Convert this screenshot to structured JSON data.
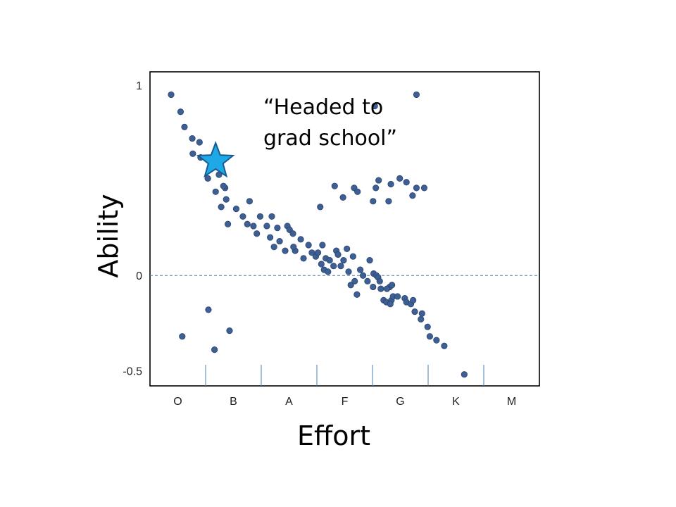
{
  "chart_data": {
    "type": "scatter",
    "title": "",
    "xlabel": "Effort",
    "ylabel": "Ability",
    "x_categories": [
      "O",
      "B",
      "A",
      "F",
      "G",
      "K",
      "M"
    ],
    "xlim": [
      0,
      7
    ],
    "ylim": [
      -0.58,
      1.07
    ],
    "yticks": [
      {
        "value": 1,
        "label": "1"
      },
      {
        "value": 0,
        "label": "0"
      },
      {
        "value": -0.5,
        "label": "-0.5"
      }
    ],
    "zero_line": true,
    "grid": false,
    "legend": "none",
    "annotation": {
      "line1": "“Headed to",
      "line2": "grad school”",
      "x": 1.18,
      "y": 0.6
    },
    "colors": {
      "point": "#3d5f94",
      "point_edge": "#2a4570",
      "star_fill": "#1fa8e6",
      "star_edge": "#1a5a93",
      "zero_line": "#4a7fb0"
    },
    "series": [
      {
        "marker": "circle",
        "points": [
          [
            0.38,
            0.95
          ],
          [
            0.55,
            0.86
          ],
          [
            0.62,
            0.78
          ],
          [
            0.76,
            0.72
          ],
          [
            0.89,
            0.7
          ],
          [
            0.77,
            0.64
          ],
          [
            0.91,
            0.62
          ],
          [
            1.04,
            0.51
          ],
          [
            1.24,
            0.53
          ],
          [
            1.35,
            0.46
          ],
          [
            1.32,
            0.47
          ],
          [
            1.18,
            0.44
          ],
          [
            1.37,
            0.4
          ],
          [
            1.28,
            0.36
          ],
          [
            1.4,
            0.27
          ],
          [
            1.55,
            0.35
          ],
          [
            1.67,
            0.31
          ],
          [
            1.79,
            0.39
          ],
          [
            1.75,
            0.27
          ],
          [
            1.86,
            0.26
          ],
          [
            1.92,
            0.22
          ],
          [
            1.98,
            0.31
          ],
          [
            2.1,
            0.26
          ],
          [
            2.19,
            0.31
          ],
          [
            2.16,
            0.2
          ],
          [
            2.23,
            0.15
          ],
          [
            2.33,
            0.18
          ],
          [
            2.29,
            0.25
          ],
          [
            2.47,
            0.26
          ],
          [
            2.51,
            0.24
          ],
          [
            2.57,
            0.22
          ],
          [
            2.43,
            0.13
          ],
          [
            2.61,
            0.13
          ],
          [
            2.58,
            0.15
          ],
          [
            2.71,
            0.19
          ],
          [
            2.76,
            0.09
          ],
          [
            2.85,
            0.16
          ],
          [
            2.91,
            0.12
          ],
          [
            2.98,
            0.1
          ],
          [
            3.02,
            0.12
          ],
          [
            3.1,
            0.16
          ],
          [
            3.08,
            0.06
          ],
          [
            3.16,
            0.09
          ],
          [
            3.23,
            0.08
          ],
          [
            3.13,
            0.03
          ],
          [
            3.2,
            0.02
          ],
          [
            3.35,
            0.13
          ],
          [
            3.38,
            0.11
          ],
          [
            3.43,
            0.05
          ],
          [
            3.48,
            0.08
          ],
          [
            3.54,
            0.14
          ],
          [
            3.57,
            0.02
          ],
          [
            3.65,
            0.1
          ],
          [
            3.61,
            -0.05
          ],
          [
            3.68,
            -0.03
          ],
          [
            3.78,
            0.03
          ],
          [
            3.83,
            0.0
          ],
          [
            3.91,
            -0.03
          ],
          [
            3.95,
            0.08
          ],
          [
            4.02,
            0.01
          ],
          [
            4.07,
            0.0
          ],
          [
            4.1,
            -0.01
          ],
          [
            4.13,
            -0.03
          ],
          [
            4.01,
            -0.06
          ],
          [
            4.15,
            -0.07
          ],
          [
            4.2,
            -0.13
          ],
          [
            4.25,
            -0.14
          ],
          [
            4.31,
            -0.06
          ],
          [
            4.35,
            -0.05
          ],
          [
            4.34,
            -0.13
          ],
          [
            4.32,
            -0.15
          ],
          [
            4.37,
            -0.11
          ],
          [
            4.45,
            -0.11
          ],
          [
            4.58,
            -0.12
          ],
          [
            4.61,
            -0.14
          ],
          [
            4.69,
            -0.15
          ],
          [
            4.73,
            -0.13
          ],
          [
            4.76,
            -0.19
          ],
          [
            4.89,
            -0.2
          ],
          [
            4.87,
            -0.23
          ],
          [
            4.99,
            -0.27
          ],
          [
            5.03,
            -0.32
          ],
          [
            5.15,
            -0.34
          ],
          [
            5.29,
            -0.37
          ],
          [
            5.65,
            -0.52
          ],
          [
            4.26,
            -0.07
          ],
          [
            3.72,
            -0.1
          ],
          [
            3.3,
            0.05
          ],
          [
            0.58,
            -0.32
          ],
          [
            1.05,
            -0.18
          ],
          [
            1.16,
            -0.39
          ],
          [
            1.43,
            -0.29
          ],
          [
            3.06,
            0.36
          ],
          [
            3.32,
            0.47
          ],
          [
            3.47,
            0.41
          ],
          [
            3.67,
            0.46
          ],
          [
            3.73,
            0.44
          ],
          [
            4.01,
            0.39
          ],
          [
            4.06,
            0.46
          ],
          [
            4.11,
            0.5
          ],
          [
            4.29,
            0.39
          ],
          [
            4.33,
            0.48
          ],
          [
            4.49,
            0.51
          ],
          [
            4.61,
            0.49
          ],
          [
            4.72,
            0.42
          ],
          [
            4.79,
            0.46
          ],
          [
            4.93,
            0.46
          ],
          [
            4.04,
            0.89
          ],
          [
            4.79,
            0.95
          ]
        ]
      },
      {
        "marker": "star",
        "points": [
          [
            1.18,
            0.6
          ]
        ]
      }
    ]
  }
}
